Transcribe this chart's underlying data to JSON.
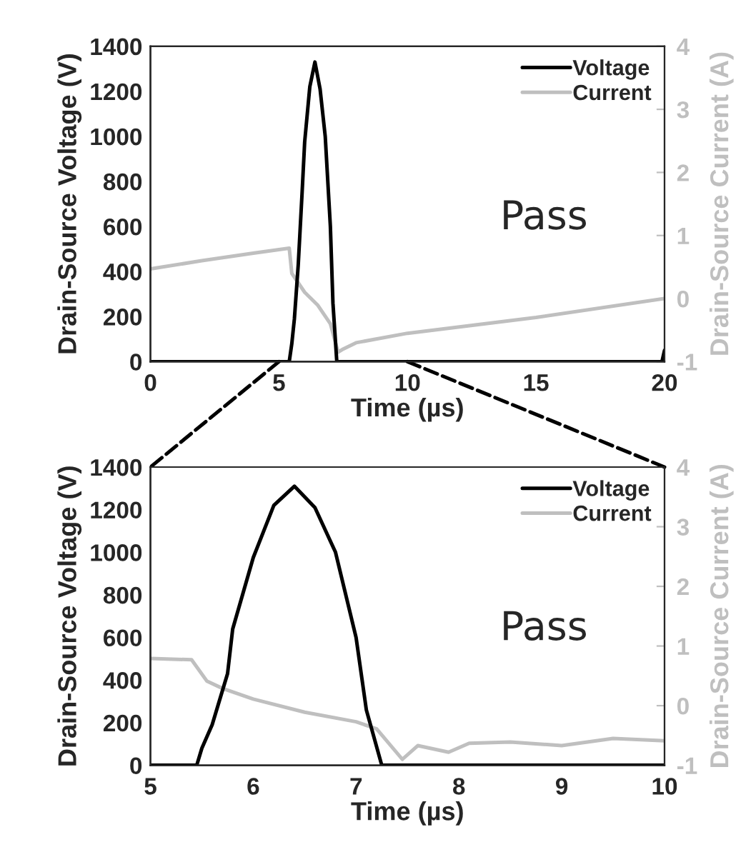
{
  "chart_data": [
    {
      "type": "line",
      "xlabel": "Time (µs)",
      "ylabel": "Drain-Source Voltage (V)",
      "y2label": "Drain-Source Current (A)",
      "xlim": [
        0,
        20
      ],
      "xticks": [
        0,
        5,
        10,
        15,
        20
      ],
      "ylim": [
        0,
        1400
      ],
      "yticks": [
        0,
        200,
        400,
        600,
        800,
        1000,
        1200,
        1400
      ],
      "y2lim": [
        -1,
        4
      ],
      "y2ticks": [
        -1,
        0,
        1,
        2,
        3,
        4
      ],
      "legend": "top right",
      "annotations": [
        "Pass"
      ],
      "series": [
        {
          "name": "Voltage",
          "color": "#000000",
          "x": [
            0,
            5.4,
            5.5,
            5.6,
            5.75,
            5.9,
            6.0,
            6.2,
            6.4,
            6.6,
            6.8,
            7.0,
            7.1,
            7.25,
            19.9,
            20
          ],
          "values": [
            0,
            0,
            80,
            190,
            430,
            750,
            975,
            1220,
            1330,
            1210,
            1000,
            600,
            260,
            0,
            0,
            50
          ]
        },
        {
          "name": "Current",
          "color": "#bfbfbf",
          "axis": "y2",
          "x": [
            0,
            2,
            4,
            5.4,
            5.5,
            6.0,
            6.5,
            7.0,
            7.3,
            7.5,
            8,
            10,
            15,
            20
          ],
          "values": [
            0.47,
            0.6,
            0.72,
            0.8,
            0.4,
            0.1,
            -0.1,
            -0.4,
            -0.85,
            -0.8,
            -0.7,
            -0.55,
            -0.3,
            0.0
          ]
        }
      ]
    },
    {
      "type": "line",
      "xlabel": "Time (µs)",
      "ylabel": "Drain-Source Voltage (V)",
      "y2label": "Drain-Source Current (A)",
      "xlim": [
        5,
        10
      ],
      "xticks": [
        5,
        6,
        7,
        8,
        9,
        10
      ],
      "ylim": [
        0,
        1400
      ],
      "yticks": [
        0,
        200,
        400,
        600,
        800,
        1000,
        1200,
        1400
      ],
      "y2lim": [
        -1,
        4
      ],
      "y2ticks": [
        -1,
        0,
        1,
        2,
        3,
        4
      ],
      "legend": "top right",
      "annotations": [
        "Pass"
      ],
      "series": [
        {
          "name": "Voltage",
          "color": "#000000",
          "x": [
            5,
            5.45,
            5.5,
            5.6,
            5.75,
            5.8,
            6.0,
            6.2,
            6.4,
            6.6,
            6.8,
            7.0,
            7.1,
            7.25,
            10
          ],
          "values": [
            0,
            0,
            80,
            190,
            430,
            640,
            975,
            1220,
            1310,
            1210,
            1000,
            600,
            260,
            0,
            0
          ]
        },
        {
          "name": "Current",
          "color": "#bfbfbf",
          "axis": "y2",
          "x": [
            5,
            5.4,
            5.55,
            5.7,
            6.0,
            6.5,
            7.0,
            7.2,
            7.45,
            7.6,
            7.9,
            8.1,
            8.5,
            9,
            9.5,
            10
          ],
          "values": [
            0.79,
            0.77,
            0.41,
            0.29,
            0.11,
            -0.11,
            -0.27,
            -0.39,
            -0.9,
            -0.67,
            -0.78,
            -0.63,
            -0.61,
            -0.67,
            -0.55,
            -0.59
          ]
        }
      ]
    }
  ]
}
